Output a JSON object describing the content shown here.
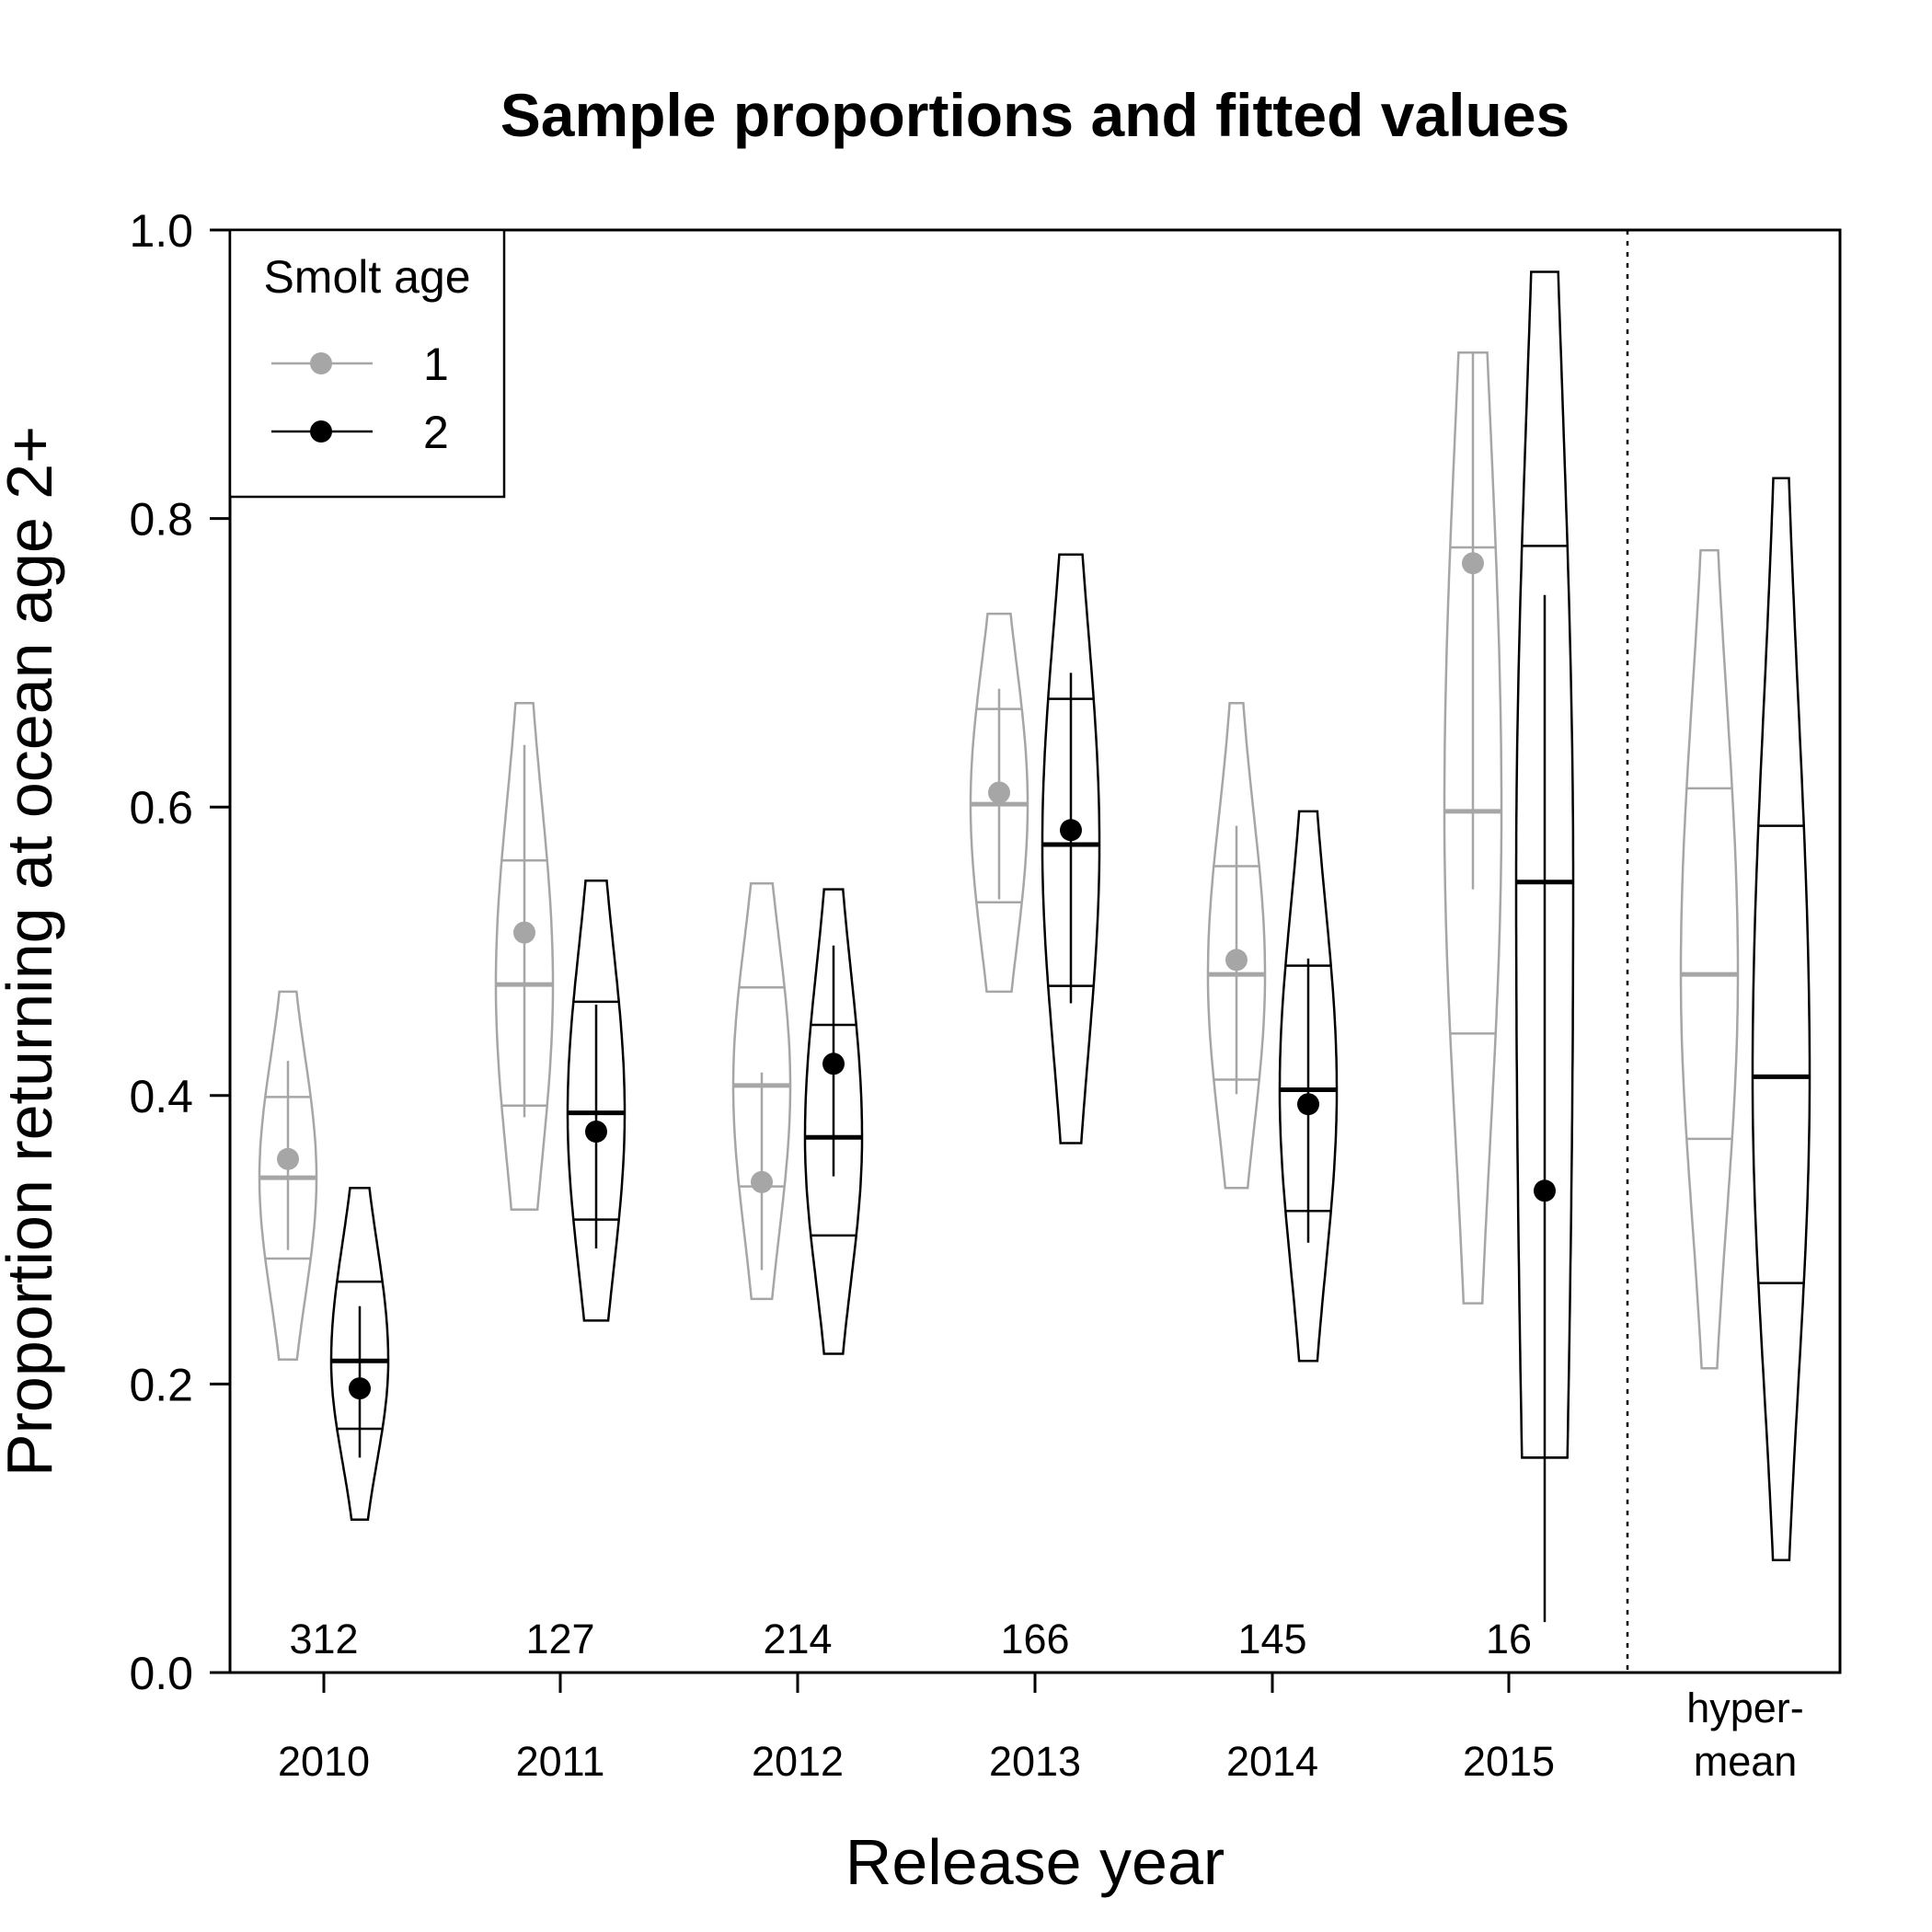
{
  "chart_data": {
    "type": "violin",
    "title": "Sample proportions and fitted values",
    "xlabel": "Release year",
    "ylabel": "Proportion returning at ocean age 2+",
    "ylim": [
      0,
      1
    ],
    "yticks": [
      "0.0",
      "0.2",
      "0.4",
      "0.6",
      "0.8",
      "1.0"
    ],
    "categories": [
      {
        "label": "2010",
        "label_line2": "",
        "n": "312"
      },
      {
        "label": "2011",
        "label_line2": "",
        "n": "127"
      },
      {
        "label": "2012",
        "label_line2": "",
        "n": "214"
      },
      {
        "label": "2013",
        "label_line2": "",
        "n": "166"
      },
      {
        "label": "2014",
        "label_line2": "",
        "n": "145"
      },
      {
        "label": "2015",
        "label_line2": "",
        "n": "16"
      },
      {
        "label": "hyper-",
        "label_line2": "mean",
        "n": ""
      }
    ],
    "legend": {
      "title": "Smolt age",
      "position": "top-left"
    },
    "series": [
      {
        "name": "1",
        "color": "#a6a6a6",
        "groups": [
          {
            "median": 0.343,
            "q25": 0.287,
            "q75": 0.399,
            "min": 0.217,
            "max": 0.472,
            "obs": 0.356,
            "ci_low": 0.293,
            "ci_high": 0.424
          },
          {
            "median": 0.477,
            "q25": 0.393,
            "q75": 0.563,
            "min": 0.321,
            "max": 0.672,
            "obs": 0.513,
            "ci_low": 0.385,
            "ci_high": 0.643
          },
          {
            "median": 0.407,
            "q25": 0.337,
            "q75": 0.475,
            "min": 0.259,
            "max": 0.547,
            "obs": 0.34,
            "ci_low": 0.279,
            "ci_high": 0.416
          },
          {
            "median": 0.602,
            "q25": 0.534,
            "q75": 0.668,
            "min": 0.472,
            "max": 0.734,
            "obs": 0.61,
            "ci_low": 0.536,
            "ci_high": 0.682
          },
          {
            "median": 0.484,
            "q25": 0.411,
            "q75": 0.559,
            "min": 0.336,
            "max": 0.672,
            "obs": 0.494,
            "ci_low": 0.401,
            "ci_high": 0.587
          },
          {
            "median": 0.597,
            "q25": 0.443,
            "q75": 0.78,
            "min": 0.256,
            "max": 0.915,
            "obs": 0.769,
            "ci_low": 0.543,
            "ci_high": 0.915
          },
          {
            "median": 0.484,
            "q25": 0.37,
            "q75": 0.613,
            "min": 0.211,
            "max": 0.778,
            "obs": null,
            "ci_low": null,
            "ci_high": null
          }
        ]
      },
      {
        "name": "2",
        "color": "#000000",
        "groups": [
          {
            "median": 0.216,
            "q25": 0.169,
            "q75": 0.271,
            "min": 0.106,
            "max": 0.336,
            "obs": 0.197,
            "ci_low": 0.149,
            "ci_high": 0.254
          },
          {
            "median": 0.388,
            "q25": 0.314,
            "q75": 0.465,
            "min": 0.244,
            "max": 0.549,
            "obs": 0.375,
            "ci_low": 0.294,
            "ci_high": 0.463
          },
          {
            "median": 0.371,
            "q25": 0.303,
            "q75": 0.449,
            "min": 0.221,
            "max": 0.543,
            "obs": 0.422,
            "ci_low": 0.344,
            "ci_high": 0.504
          },
          {
            "median": 0.574,
            "q25": 0.476,
            "q75": 0.675,
            "min": 0.367,
            "max": 0.775,
            "obs": 0.584,
            "ci_low": 0.464,
            "ci_high": 0.693
          },
          {
            "median": 0.404,
            "q25": 0.32,
            "q75": 0.49,
            "min": 0.216,
            "max": 0.597,
            "obs": 0.394,
            "ci_low": 0.298,
            "ci_high": 0.495
          },
          {
            "median": 0.548,
            "q25": 0.149,
            "q75": 0.781,
            "min": 0.149,
            "max": 0.971,
            "obs": 0.334,
            "ci_low": 0.035,
            "ci_high": 0.747
          },
          {
            "median": 0.413,
            "q25": 0.27,
            "q75": 0.587,
            "min": 0.078,
            "max": 0.828,
            "obs": null,
            "ci_low": null,
            "ci_high": null
          }
        ]
      }
    ]
  }
}
